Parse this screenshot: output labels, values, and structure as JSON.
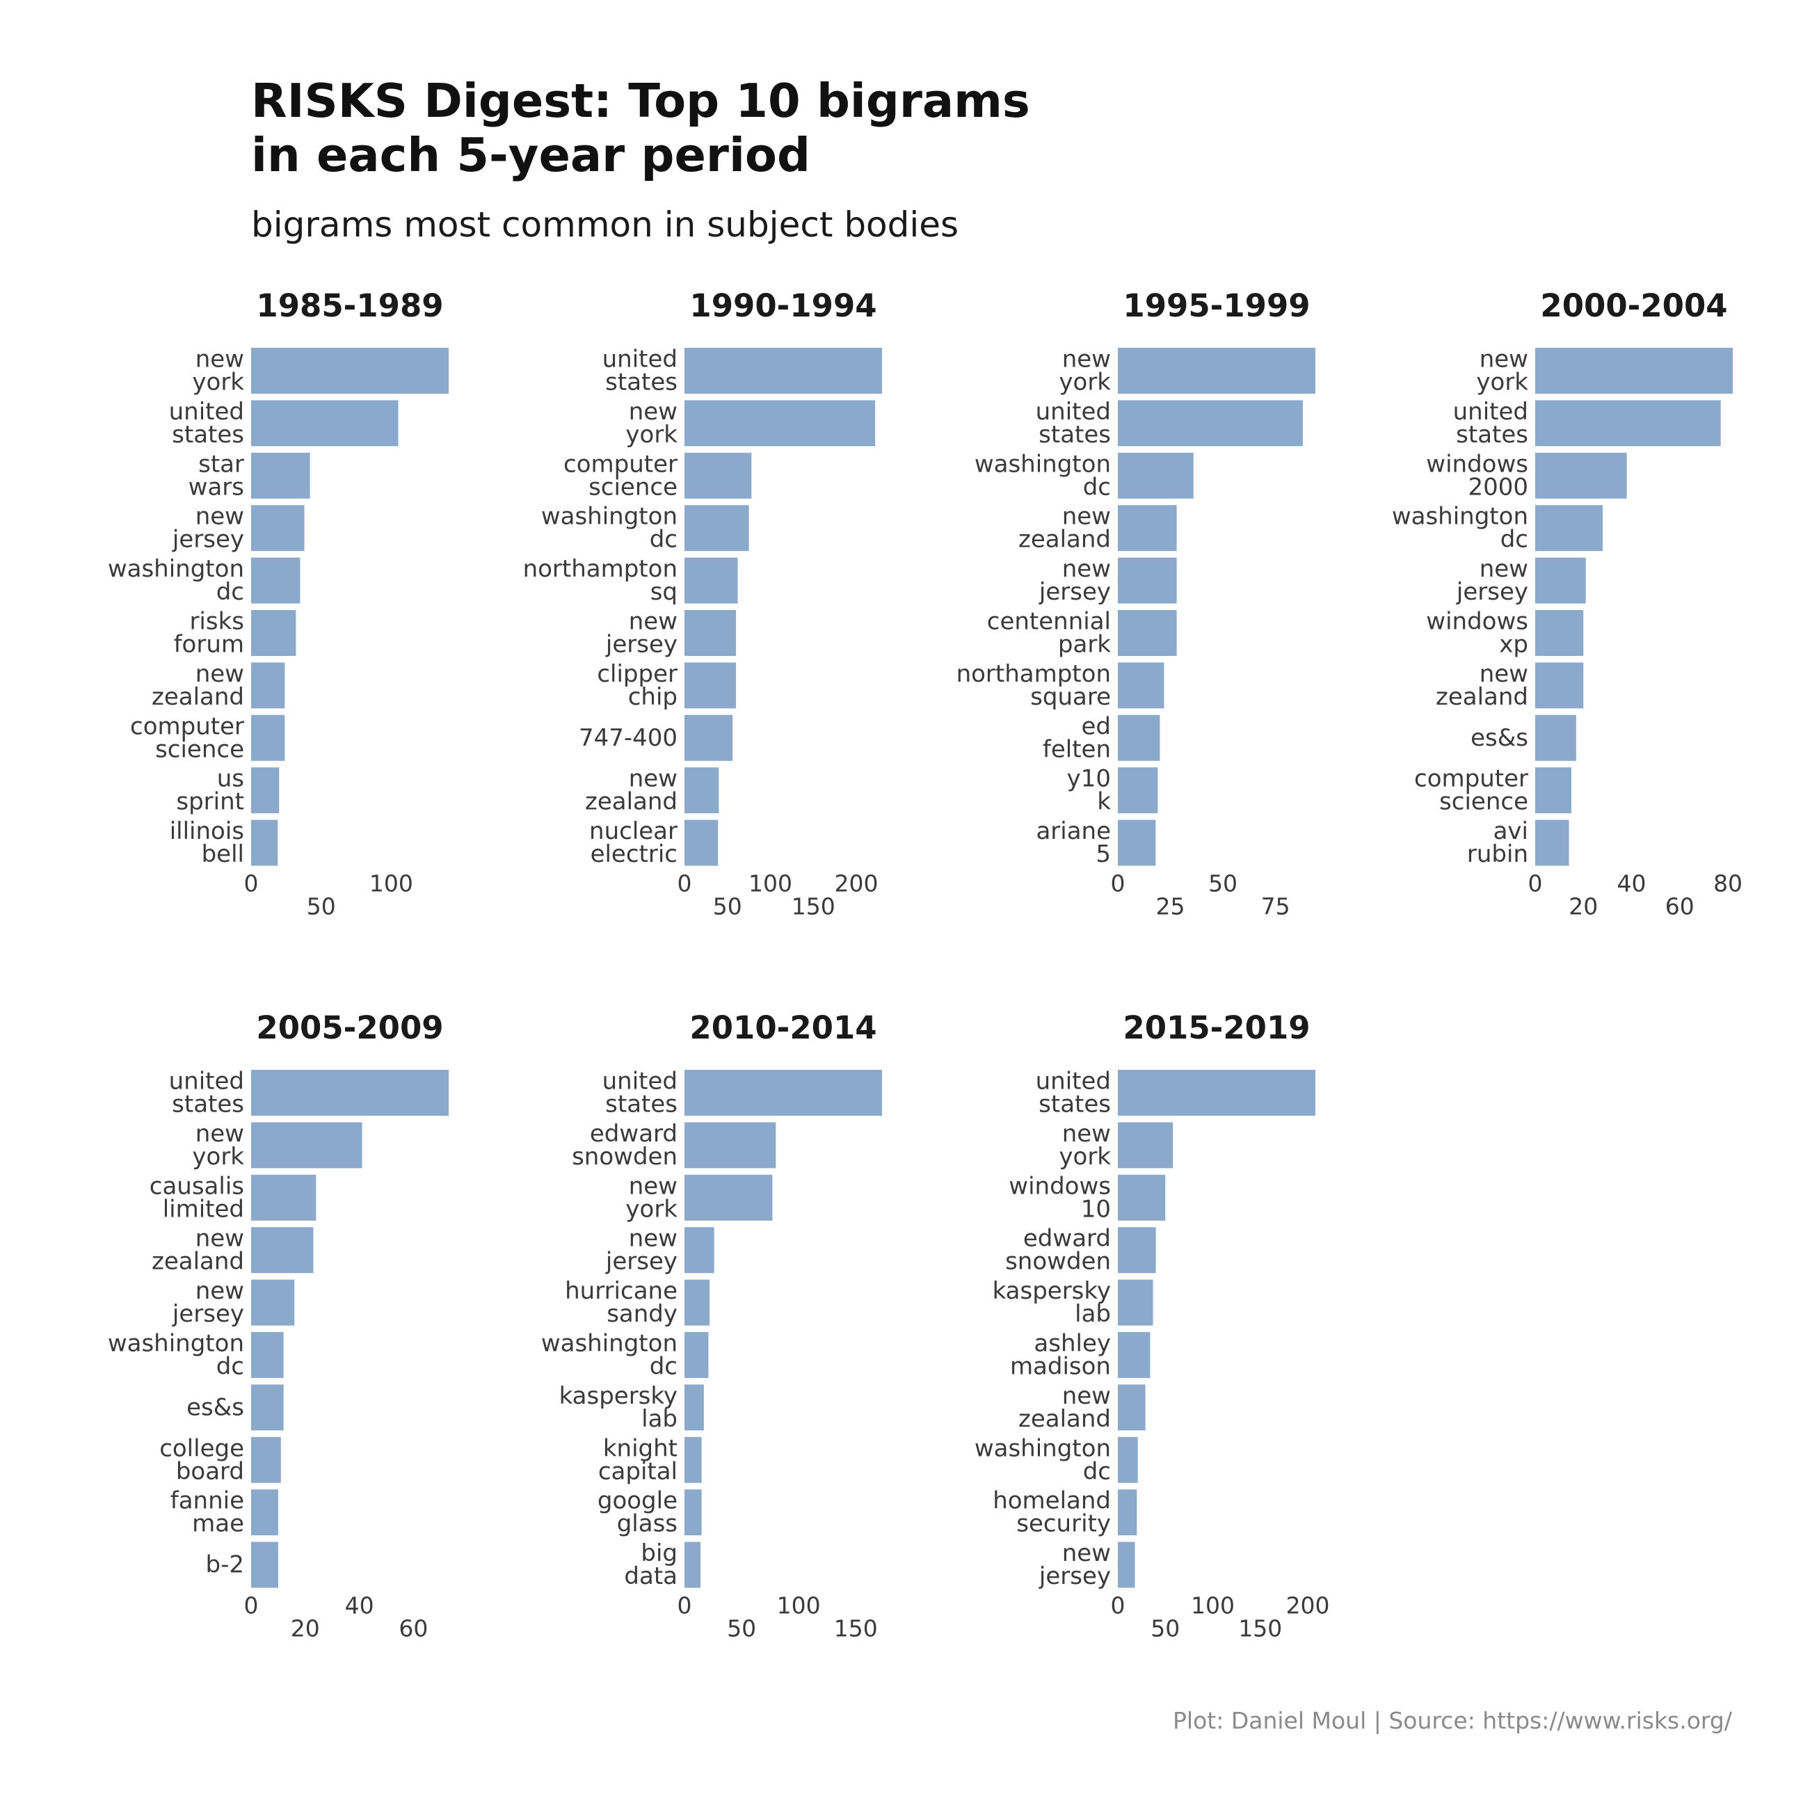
{
  "title_line1": "RISKS Digest: Top 10 bigrams",
  "title_line2": "in each 5-year period",
  "subtitle": "bigrams most common in subject bodies",
  "caption": "Plot: Daniel Moul | Source: https://www.risks.org/",
  "colors": {
    "bar": "#8aa9cb",
    "title": "#111111",
    "label": "#3a3a3a",
    "caption": "#8a8a8a",
    "background": "#ffffff"
  },
  "chart_data": [
    {
      "type": "bar",
      "orientation": "horizontal",
      "title": "1985-1989",
      "categories": [
        "new\nyork",
        "united\nstates",
        "star\nwars",
        "new\njersey",
        "washington\ndc",
        "risks\nforum",
        "new\nzealand",
        "computer\nscience",
        "us\nsprint",
        "illinois\nbell"
      ],
      "values": [
        141,
        105,
        42,
        38,
        35,
        32,
        24,
        24,
        20,
        19
      ],
      "xticks": [
        0,
        50,
        100
      ],
      "xlim": [
        0,
        141
      ]
    },
    {
      "type": "bar",
      "orientation": "horizontal",
      "title": "1990-1994",
      "categories": [
        "united\nstates",
        "new\nyork",
        "computer\nscience",
        "washington\ndc",
        "northampton\nsq",
        "new\njersey",
        "clipper\nchip",
        "747-400",
        "new\nzealand",
        "nuclear\nelectric"
      ],
      "values": [
        230,
        222,
        78,
        75,
        62,
        60,
        60,
        56,
        40,
        39
      ],
      "xticks": [
        0,
        50,
        100,
        150,
        200
      ],
      "xlim": [
        0,
        230
      ]
    },
    {
      "type": "bar",
      "orientation": "horizontal",
      "title": "1995-1999",
      "categories": [
        "new\nyork",
        "united\nstates",
        "washington\ndc",
        "new\nzealand",
        "new\njersey",
        "centennial\npark",
        "northampton\nsquare",
        "ed\nfelten",
        "y10\nk",
        "ariane\n5"
      ],
      "values": [
        94,
        88,
        36,
        28,
        28,
        28,
        22,
        20,
        19,
        18
      ],
      "xticks": [
        0,
        25,
        50,
        75
      ],
      "xlim": [
        0,
        94
      ]
    },
    {
      "type": "bar",
      "orientation": "horizontal",
      "title": "2000-2004",
      "categories": [
        "new\nyork",
        "united\nstates",
        "windows\n2000",
        "washington\ndc",
        "new\njersey",
        "windows\nxp",
        "new\nzealand",
        "es&s",
        "computer\nscience",
        "avi\nrubin"
      ],
      "values": [
        82,
        77,
        38,
        28,
        21,
        20,
        20,
        17,
        15,
        14
      ],
      "xticks": [
        0,
        20,
        40,
        60,
        80
      ],
      "xlim": [
        0,
        82
      ]
    },
    {
      "type": "bar",
      "orientation": "horizontal",
      "title": "2005-2009",
      "categories": [
        "united\nstates",
        "new\nyork",
        "causalis\nlimited",
        "new\nzealand",
        "new\njersey",
        "washington\ndc",
        "es&s",
        "college\nboard",
        "fannie\nmae",
        "b-2"
      ],
      "values": [
        73,
        41,
        24,
        23,
        16,
        12,
        12,
        11,
        10,
        10
      ],
      "xticks": [
        0,
        20,
        40,
        60
      ],
      "xlim": [
        0,
        73
      ]
    },
    {
      "type": "bar",
      "orientation": "horizontal",
      "title": "2010-2014",
      "categories": [
        "united\nstates",
        "edward\nsnowden",
        "new\nyork",
        "new\njersey",
        "hurricane\nsandy",
        "washington\ndc",
        "kaspersky\nlab",
        "knight\ncapital",
        "google\nglass",
        "big\ndata"
      ],
      "values": [
        173,
        80,
        77,
        26,
        22,
        21,
        17,
        15,
        15,
        14
      ],
      "xticks": [
        0,
        50,
        100,
        150
      ],
      "xlim": [
        0,
        173
      ]
    },
    {
      "type": "bar",
      "orientation": "horizontal",
      "title": "2015-2019",
      "categories": [
        "united\nstates",
        "new\nyork",
        "windows\n10",
        "edward\nsnowden",
        "kaspersky\nlab",
        "ashley\nmadison",
        "new\nzealand",
        "washington\ndc",
        "homeland\nsecurity",
        "new\njersey"
      ],
      "values": [
        208,
        58,
        50,
        40,
        37,
        34,
        29,
        21,
        20,
        18
      ],
      "xticks": [
        0,
        50,
        100,
        150,
        200
      ],
      "xlim": [
        0,
        208
      ]
    }
  ]
}
